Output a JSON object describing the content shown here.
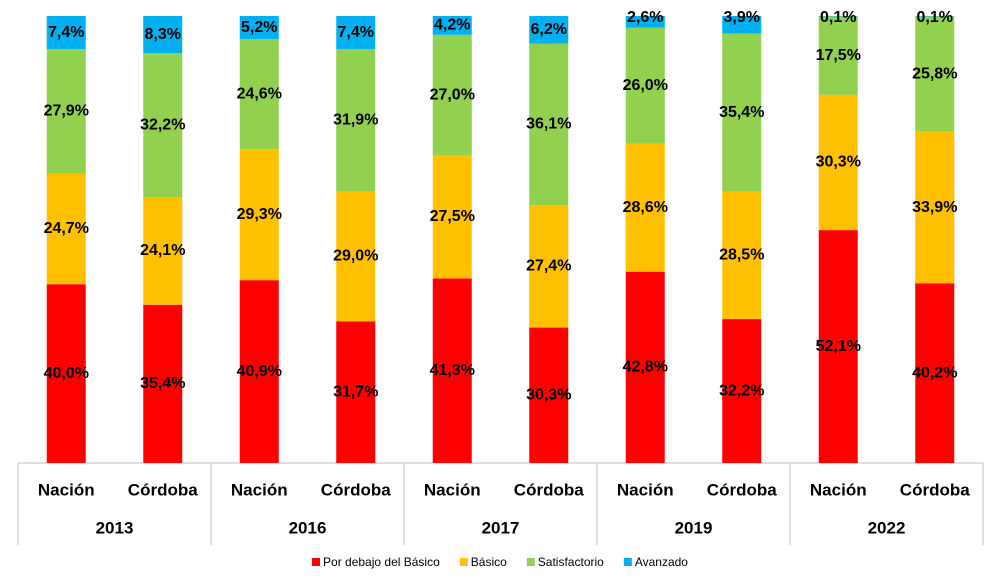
{
  "chart_data": {
    "type": "bar",
    "stacked": true,
    "categories": [
      "Nación",
      "Córdoba",
      "Nación",
      "Córdoba",
      "Nación",
      "Córdoba",
      "Nación",
      "Córdoba",
      "Nación",
      "Córdoba"
    ],
    "groups": [
      "2013",
      "2016",
      "2017",
      "2019",
      "2022"
    ],
    "ylim": [
      0,
      100
    ],
    "series": [
      {
        "name": "Por debajo del Básico",
        "color": "#ff0000",
        "values": [
          40.0,
          35.4,
          40.9,
          31.7,
          41.3,
          30.3,
          42.8,
          32.2,
          52.1,
          40.2
        ],
        "value_labels": [
          "40,0%",
          "35,4%",
          "40,9%",
          "31,7%",
          "41,3%",
          "30,3%",
          "42,8%",
          "32,2%",
          "52,1%",
          "40,2%"
        ]
      },
      {
        "name": "Básico",
        "color": "#ffc000",
        "values": [
          24.7,
          24.1,
          29.3,
          29.0,
          27.5,
          27.4,
          28.6,
          28.5,
          30.3,
          33.9
        ],
        "value_labels": [
          "24,7%",
          "24,1%",
          "29,3%",
          "29,0%",
          "27,5%",
          "27,4%",
          "28,6%",
          "28,5%",
          "30,3%",
          "33,9%"
        ]
      },
      {
        "name": "Satisfactorio",
        "color": "#92d050",
        "values": [
          27.9,
          32.2,
          24.6,
          31.9,
          27.0,
          36.1,
          26.0,
          35.4,
          17.5,
          25.8
        ],
        "value_labels": [
          "27,9%",
          "32,2%",
          "24,6%",
          "31,9%",
          "27,0%",
          "36,1%",
          "26,0%",
          "35,4%",
          "17,5%",
          "25,8%"
        ]
      },
      {
        "name": "Avanzado",
        "color": "#00b0f0",
        "values": [
          7.4,
          8.3,
          5.2,
          7.4,
          4.2,
          6.2,
          2.6,
          3.9,
          0.1,
          0.1
        ],
        "value_labels": [
          "7,4%",
          "8,3%",
          "5,2%",
          "7,4%",
          "4,2%",
          "6,2%",
          "2,6%",
          "3,9%",
          "0,1%",
          "0,1%"
        ]
      }
    ]
  }
}
